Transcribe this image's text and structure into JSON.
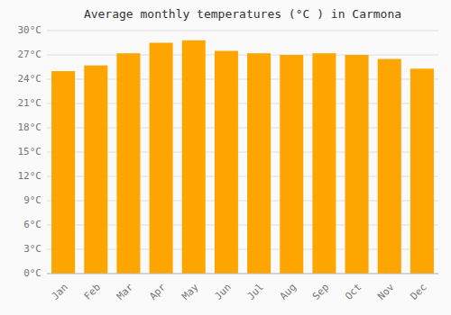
{
  "chart_data": {
    "type": "bar",
    "title": "Average monthly temperatures (°C ) in Carmona",
    "categories": [
      "Jan",
      "Feb",
      "Mar",
      "Apr",
      "May",
      "Jun",
      "Jul",
      "Aug",
      "Sep",
      "Oct",
      "Nov",
      "Dec"
    ],
    "values": [
      25.0,
      25.7,
      27.2,
      28.5,
      28.8,
      27.5,
      27.2,
      27.0,
      27.2,
      27.0,
      26.5,
      25.3
    ],
    "color": "#FFA500",
    "ylim": [
      0,
      30
    ],
    "yticks": [
      {
        "value": 0,
        "label": "0°C"
      },
      {
        "value": 3,
        "label": "3°C"
      },
      {
        "value": 6,
        "label": "6°C"
      },
      {
        "value": 9,
        "label": "9°C"
      },
      {
        "value": 12,
        "label": "12°C"
      },
      {
        "value": 15,
        "label": "15°C"
      },
      {
        "value": 18,
        "label": "18°C"
      },
      {
        "value": 21,
        "label": "21°C"
      },
      {
        "value": 24,
        "label": "24°C"
      },
      {
        "value": 27,
        "label": "27°C"
      },
      {
        "value": 30,
        "label": "30°C"
      }
    ],
    "grid": true
  }
}
